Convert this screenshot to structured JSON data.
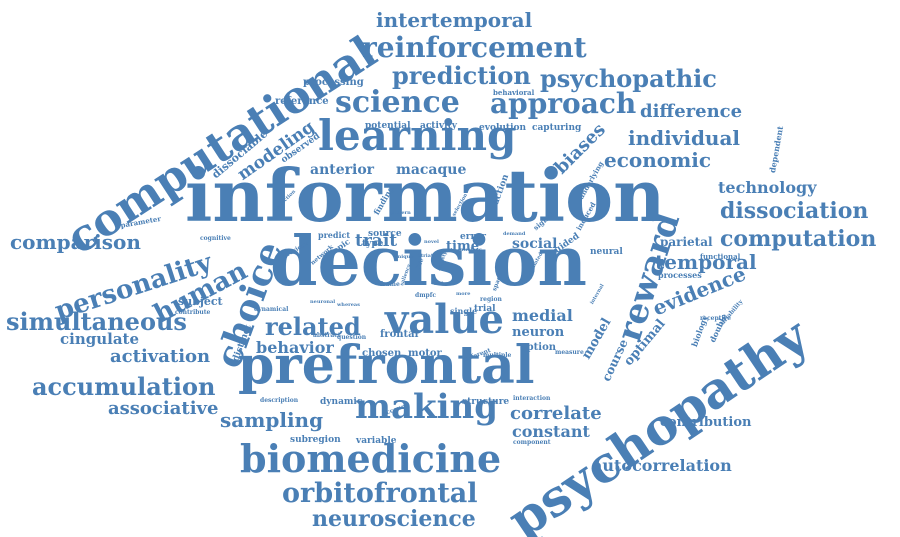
{
  "color": "#4a7fb5",
  "words": [
    {
      "text": "information",
      "weight": 72
    },
    {
      "text": "decision",
      "weight": 68
    },
    {
      "text": "prefrontal",
      "weight": 52
    },
    {
      "text": "psychopathy",
      "weight": 50
    },
    {
      "text": "computational",
      "weight": 44
    },
    {
      "text": "learning",
      "weight": 42
    },
    {
      "text": "value",
      "weight": 40
    },
    {
      "text": "biomedicine",
      "weight": 38
    },
    {
      "text": "choice",
      "weight": 36
    },
    {
      "text": "making",
      "weight": 34
    },
    {
      "text": "reward",
      "weight": 34
    },
    {
      "text": "science",
      "weight": 30
    },
    {
      "text": "reinforcement",
      "weight": 28
    },
    {
      "text": "approach",
      "weight": 28
    },
    {
      "text": "orbitofrontal",
      "weight": 27
    },
    {
      "text": "human",
      "weight": 26
    },
    {
      "text": "personality",
      "weight": 26
    },
    {
      "text": "psychopathic",
      "weight": 24
    },
    {
      "text": "prediction",
      "weight": 24
    },
    {
      "text": "simultaneous",
      "weight": 24
    },
    {
      "text": "related",
      "weight": 24
    },
    {
      "text": "accumulation",
      "weight": 24
    },
    {
      "text": "dissociation",
      "weight": 22
    },
    {
      "text": "computation",
      "weight": 22
    },
    {
      "text": "neuroscience",
      "weight": 22
    },
    {
      "text": "comparison",
      "weight": 20
    },
    {
      "text": "intertemporal",
      "weight": 20
    },
    {
      "text": "economic",
      "weight": 20
    },
    {
      "text": "individual",
      "weight": 20
    },
    {
      "text": "evidence",
      "weight": 20
    },
    {
      "text": "temporal",
      "weight": 20
    },
    {
      "text": "sampling",
      "weight": 20
    },
    {
      "text": "biases",
      "weight": 18
    },
    {
      "text": "difference",
      "weight": 18
    },
    {
      "text": "activation",
      "weight": 18
    },
    {
      "text": "associative",
      "weight": 18
    },
    {
      "text": "correlate",
      "weight": 18
    },
    {
      "text": "modeling",
      "weight": 17
    },
    {
      "text": "behavior",
      "weight": 16
    },
    {
      "text": "trait",
      "weight": 17
    },
    {
      "text": "medial",
      "weight": 16
    },
    {
      "text": "constant",
      "weight": 16
    },
    {
      "text": "technology",
      "weight": 16
    },
    {
      "text": "autocorrelation",
      "weight": 16
    },
    {
      "text": "cingulate",
      "weight": 15
    },
    {
      "text": "anterior",
      "weight": 14
    },
    {
      "text": "macaque",
      "weight": 14
    },
    {
      "text": "contribution",
      "weight": 13
    },
    {
      "text": "social",
      "weight": 14
    },
    {
      "text": "neuron",
      "weight": 13
    },
    {
      "text": "model",
      "weight": 13
    },
    {
      "text": "optimal",
      "weight": 13
    },
    {
      "text": "course",
      "weight": 12
    },
    {
      "text": "parietal",
      "weight": 12
    },
    {
      "text": "subject",
      "weight": 11
    },
    {
      "text": "time",
      "weight": 13
    },
    {
      "text": "dissociable",
      "weight": 11
    },
    {
      "text": "option",
      "weight": 10
    },
    {
      "text": "chosen",
      "weight": 10
    },
    {
      "text": "motor",
      "weight": 10
    },
    {
      "text": "frontal",
      "weight": 10
    },
    {
      "text": "processing",
      "weight": 10
    },
    {
      "text": "reference",
      "weight": 10
    },
    {
      "text": "observed",
      "weight": 9
    },
    {
      "text": "potential",
      "weight": 9
    },
    {
      "text": "activity",
      "weight": 9
    },
    {
      "text": "evolution",
      "weight": 9
    },
    {
      "text": "capturing",
      "weight": 9
    },
    {
      "text": "structure",
      "weight": 9
    },
    {
      "text": "dynamic",
      "weight": 9
    },
    {
      "text": "distinct",
      "weight": 9
    },
    {
      "text": "subregion",
      "weight": 9
    },
    {
      "text": "variable",
      "weight": 9
    },
    {
      "text": "guided",
      "weight": 9
    },
    {
      "text": "neural",
      "weight": 9
    },
    {
      "text": "type",
      "weight": 9
    },
    {
      "text": "error",
      "weight": 9
    },
    {
      "text": "source",
      "weight": 9
    },
    {
      "text": "trial",
      "weight": 9
    },
    {
      "text": "action",
      "weight": 9
    },
    {
      "text": "finding",
      "weight": 8
    },
    {
      "text": "topic",
      "weight": 8
    },
    {
      "text": "predict",
      "weight": 8
    },
    {
      "text": "single",
      "weight": 8
    },
    {
      "text": "dependent",
      "weight": 8
    },
    {
      "text": "biology",
      "weight": 8
    },
    {
      "text": "double",
      "weight": 8
    },
    {
      "text": "processes",
      "weight": 8
    },
    {
      "text": "functional",
      "weight": 7
    },
    {
      "text": "behavioral",
      "weight": 7
    },
    {
      "text": "underlying",
      "weight": 7
    },
    {
      "text": "signal",
      "weight": 7
    },
    {
      "text": "induced",
      "weight": 7
    },
    {
      "text": "parameter",
      "weight": 7
    },
    {
      "text": "cognitive",
      "weight": 6
    },
    {
      "text": "previous",
      "weight": 6
    },
    {
      "text": "network",
      "weight": 6
    },
    {
      "text": "description",
      "weight": 6
    },
    {
      "text": "account",
      "weight": 6
    },
    {
      "text": "interaction",
      "weight": 6
    },
    {
      "text": "component",
      "weight": 6
    },
    {
      "text": "measure",
      "weight": 6
    },
    {
      "text": "multiple",
      "weight": 6
    },
    {
      "text": "different",
      "weight": 6
    },
    {
      "text": "region",
      "weight": 6
    },
    {
      "text": "life",
      "weight": 6
    },
    {
      "text": "dmpfc",
      "weight": 6
    },
    {
      "text": "frame",
      "weight": 6
    },
    {
      "text": "space",
      "weight": 6
    },
    {
      "text": "variability",
      "weight": 6
    },
    {
      "text": "receptive",
      "weight": 6
    },
    {
      "text": "dynamical",
      "weight": 6
    },
    {
      "text": "abstract",
      "weight": 6
    },
    {
      "text": "question",
      "weight": 6
    },
    {
      "text": "contribute",
      "weight": 6
    },
    {
      "text": "whereas",
      "weight": 5
    },
    {
      "text": "perfection",
      "weight": 5
    },
    {
      "text": "selection",
      "weight": 5
    },
    {
      "text": "pattern",
      "weight": 5
    },
    {
      "text": "unique",
      "weight": 5
    },
    {
      "text": "novel",
      "weight": 5
    },
    {
      "text": "nucleus",
      "weight": 5
    },
    {
      "text": "more",
      "weight": 5
    },
    {
      "text": "demand",
      "weight": 5
    },
    {
      "text": "striatal",
      "weight": 5
    },
    {
      "text": "saliency",
      "weight": 5
    },
    {
      "text": "modulated",
      "weight": 5
    },
    {
      "text": "linked",
      "weight": 5
    },
    {
      "text": "anxiety",
      "weight": 5
    },
    {
      "text": "internal",
      "weight": 5
    },
    {
      "text": "neuronal",
      "weight": 5
    }
  ]
}
